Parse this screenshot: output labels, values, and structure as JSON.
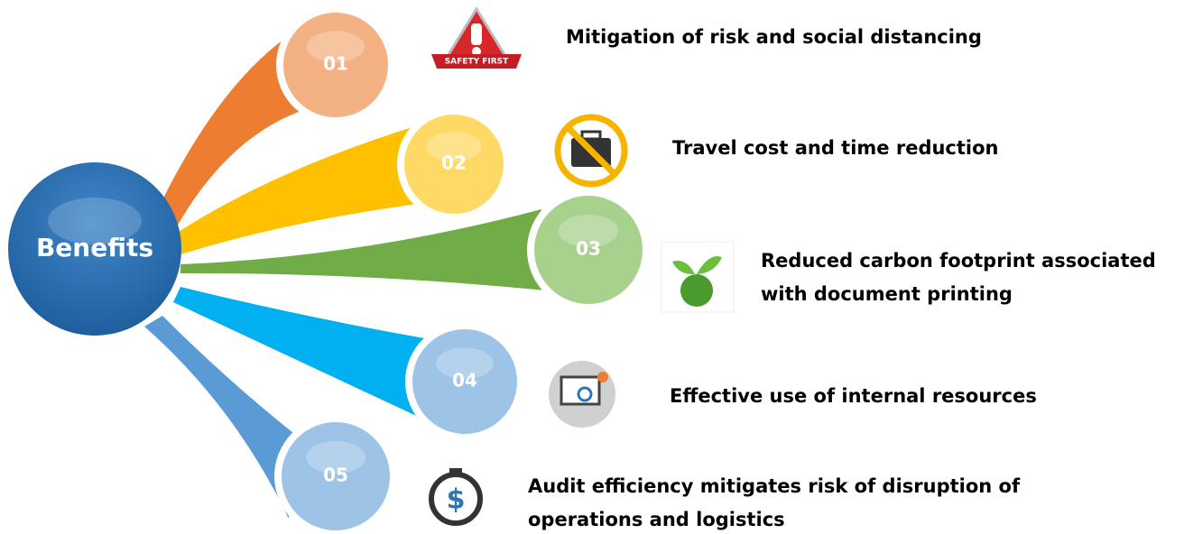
{
  "center": "Benefits",
  "items": [
    {
      "number": "01",
      "lines": [
        "Mitigation of risk and social distancing"
      ],
      "icon_text": "SAFETY FIRST"
    },
    {
      "number": "02",
      "lines": [
        "Travel cost and time reduction"
      ]
    },
    {
      "number": "03",
      "lines": [
        "Reduced carbon footprint associated",
        "with document printing"
      ]
    },
    {
      "number": "04",
      "lines": [
        "Effective use of internal resources"
      ]
    },
    {
      "number": "05",
      "lines": [
        "Audit efficiency mitigates risk of disruption of",
        "operations and logistics"
      ]
    }
  ]
}
